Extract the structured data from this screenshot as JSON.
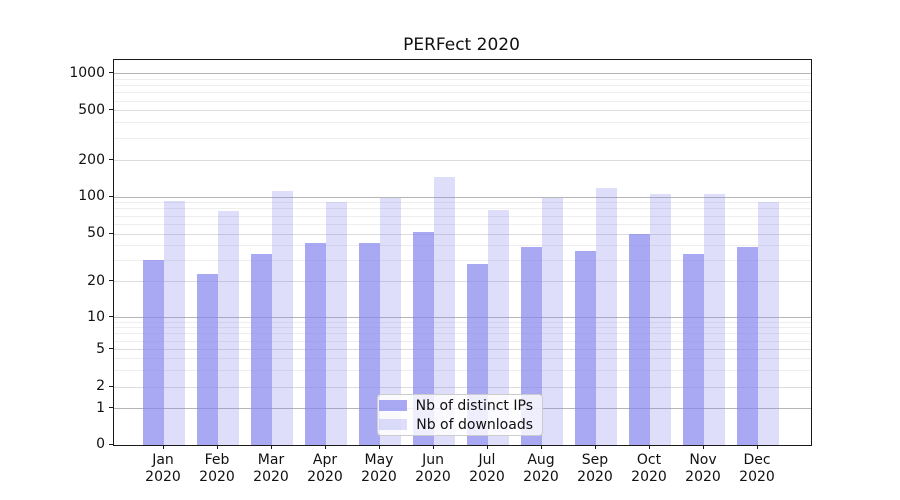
{
  "figure": {
    "title": "PERFect 2020"
  },
  "chart_data": {
    "type": "bar",
    "title": "PERFect 2020",
    "categories": [
      "Jan 2020",
      "Feb 2020",
      "Mar 2020",
      "Apr 2020",
      "May 2020",
      "Jun 2020",
      "Jul 2020",
      "Aug 2020",
      "Sep 2020",
      "Oct 2020",
      "Nov 2020",
      "Dec 2020"
    ],
    "series": [
      {
        "name": "Nb of distinct IPs",
        "color": "#8888ee",
        "fill_alpha": 0.72,
        "values": [
          30,
          23,
          34,
          42,
          42,
          52,
          28,
          39,
          36,
          50,
          34,
          39
        ]
      },
      {
        "name": "Nb of downloads",
        "color": "#8888ee",
        "fill_alpha": 0.28,
        "values": [
          92,
          76,
          110,
          90,
          97,
          145,
          78,
          98,
          117,
          105,
          105,
          90
        ]
      }
    ],
    "xlabel": "",
    "ylabel": "",
    "yscale": "symlog",
    "yticks": [
      0,
      1,
      2,
      5,
      10,
      20,
      50,
      100,
      200,
      500,
      1000
    ],
    "minor_yticks": [
      3,
      4,
      6,
      7,
      8,
      9,
      30,
      40,
      60,
      70,
      80,
      90,
      300,
      400,
      600,
      700,
      800,
      900
    ],
    "ylim": [
      0,
      1300
    ],
    "grid": true,
    "legend": {
      "position": "lower-center",
      "labels": [
        "Nb of distinct IPs",
        "Nb of downloads"
      ]
    }
  }
}
